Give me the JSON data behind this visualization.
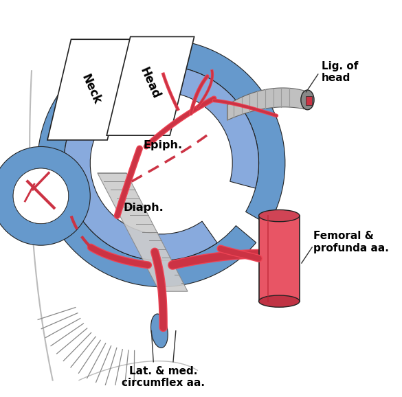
{
  "background_color": "#ffffff",
  "blue_color": "#6699cc",
  "blue_light": "#88aadd",
  "red_color": "#cc3344",
  "red_bright": "#ee4455",
  "gray_color": "#aaaaaa",
  "dark_gray": "#555555",
  "outline_color": "#222222",
  "labels": {
    "neck": "Neck",
    "head": "Head",
    "epiph": "Epiph.",
    "diaph": "Diaph.",
    "lig_of_head": "Lig. of\nhead",
    "femoral": "Femoral &\nprofunda aa.",
    "circumflex": "Lat. & med.\ncircumflex aa."
  },
  "figsize": [
    5.85,
    5.78
  ],
  "dpi": 100
}
